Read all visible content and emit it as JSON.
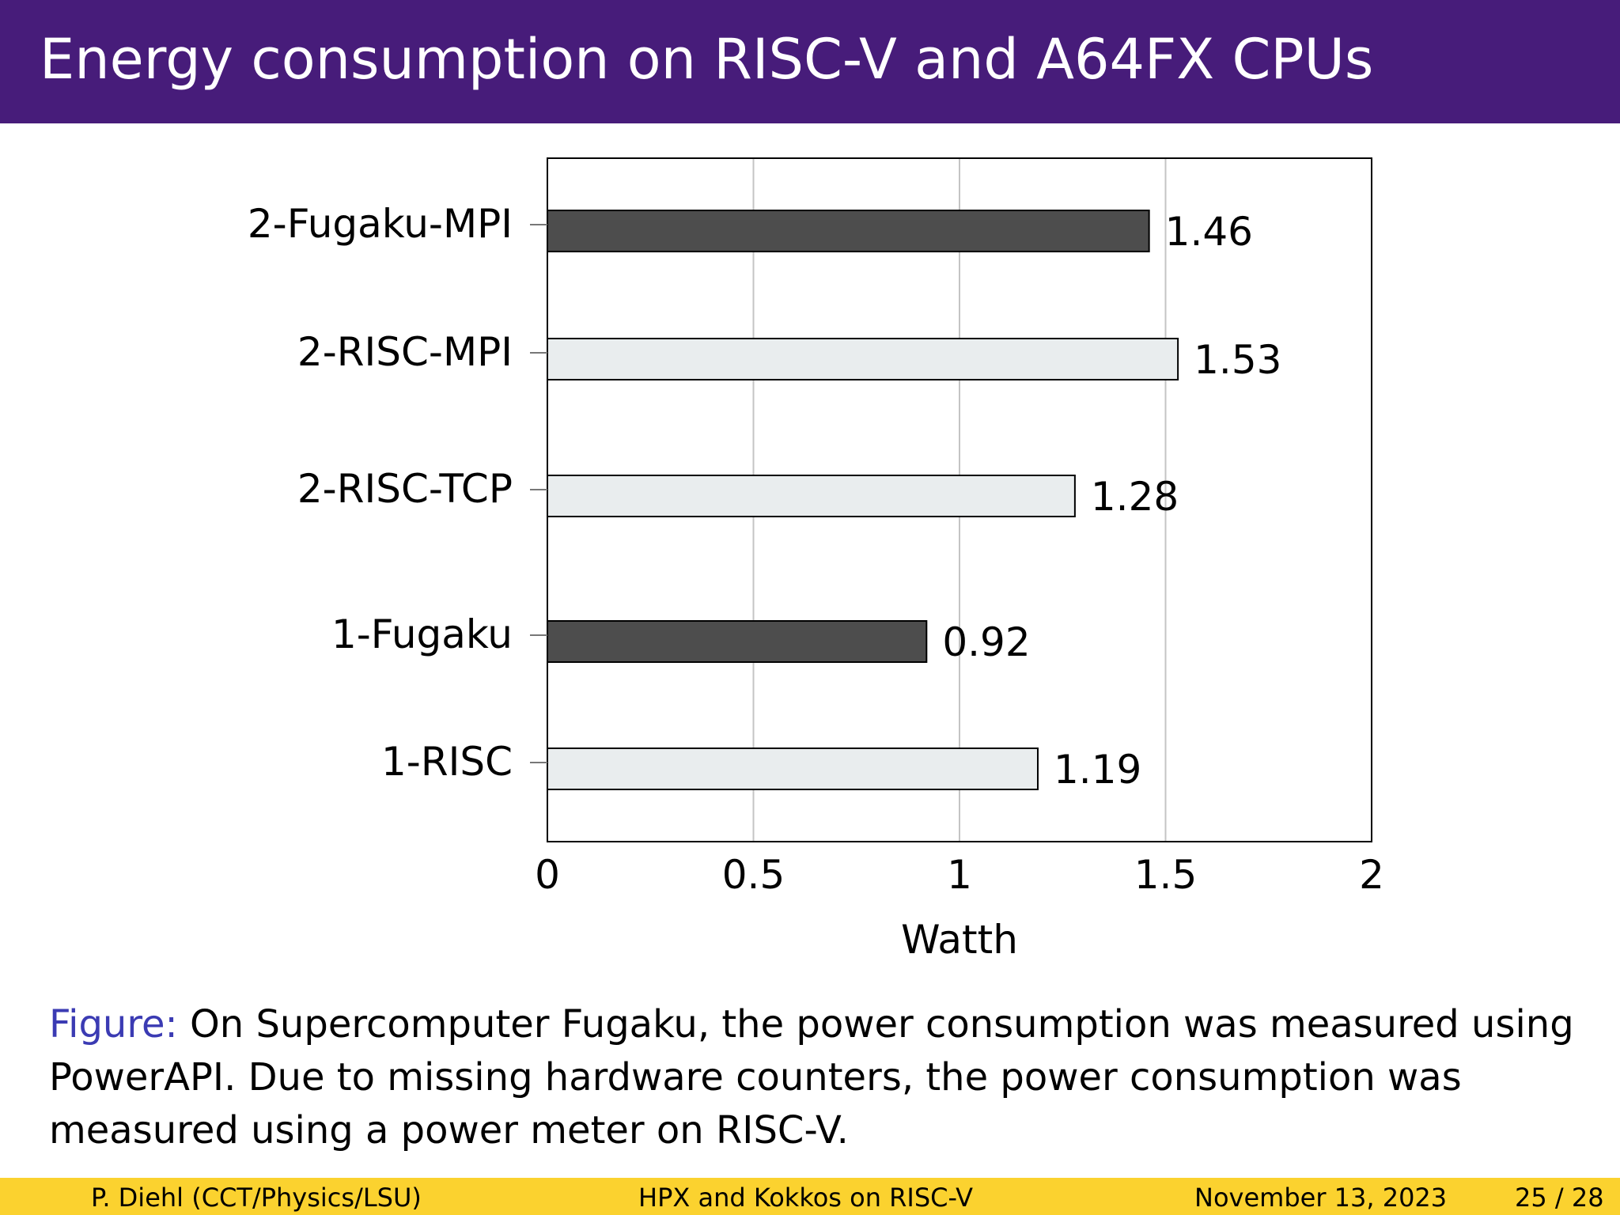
{
  "slide": {
    "title": "Energy consumption on RISC-V and A64FX CPUs"
  },
  "chart_data": {
    "type": "bar",
    "orientation": "horizontal",
    "categories": [
      "1-RISC",
      "1-Fugaku",
      "2-RISC-TCP",
      "2-RISC-MPI",
      "2-Fugaku-MPI"
    ],
    "values": [
      1.19,
      0.92,
      1.28,
      1.53,
      1.46
    ],
    "data_labels": [
      "1.19",
      "0.92",
      "1.28",
      "1.53",
      "1.46"
    ],
    "xlabel": "Watth",
    "ylabel": "",
    "xlim": [
      0,
      2
    ],
    "xticks": [
      0,
      0.5,
      1,
      1.5,
      2
    ],
    "xtick_labels": [
      "0",
      "0.5",
      "1",
      "1.5",
      "2"
    ],
    "grid": "vertical",
    "colors": {
      "risc": "#e9edee",
      "fugaku": "#4d4d4d",
      "grid": "#c4c4c4"
    }
  },
  "caption": {
    "label": "Figure:",
    "text": "On Supercomputer Fugaku, the power consumption was measured using PowerAPI. Due to missing hardware counters, the power consumption was measured using a power meter on RISC-V."
  },
  "footer": {
    "author": "P. Diehl  (CCT/Physics/LSU)",
    "talk": "HPX and Kokkos on RISC-V",
    "date": "November 13, 2023",
    "page": "25 / 28"
  }
}
